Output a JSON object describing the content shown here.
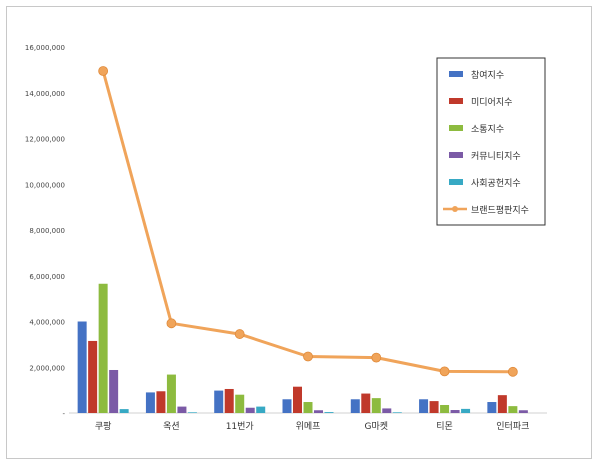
{
  "chart_data": {
    "type": "bar",
    "categories": [
      "쿠팡",
      "옥션",
      "11번가",
      "위메프",
      "G마켓",
      "티몬",
      "인터파크"
    ],
    "y_ticks": [
      "-",
      "2,000,000",
      "4,000,000",
      "6,000,000",
      "8,000,000",
      "10,000,000",
      "12,000,000",
      "14,000,000",
      "16,000,000"
    ],
    "ylim": [
      0,
      16000000
    ],
    "grid": false,
    "legend_position": "top-right",
    "series": [
      {
        "name": "참여지수",
        "kind": "bar",
        "color": "#4472c4",
        "values": [
          4000000,
          900000,
          980000,
          600000,
          600000,
          600000,
          480000
        ]
      },
      {
        "name": "미디어지수",
        "kind": "bar",
        "color": "#c0392b",
        "values": [
          3150000,
          950000,
          1050000,
          1150000,
          850000,
          520000,
          780000
        ]
      },
      {
        "name": "소통지수",
        "kind": "bar",
        "color": "#8dbb3f",
        "values": [
          5650000,
          1680000,
          800000,
          480000,
          650000,
          350000,
          300000
        ]
      },
      {
        "name": "커뮤니티지수",
        "kind": "bar",
        "color": "#7b5aa6",
        "values": [
          1880000,
          280000,
          230000,
          120000,
          200000,
          130000,
          120000
        ]
      },
      {
        "name": "사회공헌지수",
        "kind": "bar",
        "color": "#37a9c4",
        "values": [
          170000,
          30000,
          280000,
          40000,
          30000,
          180000,
          0
        ]
      },
      {
        "name": "브랜드평판지수",
        "kind": "line",
        "color": "#f0a45a",
        "values": [
          14950000,
          3920000,
          3450000,
          2470000,
          2420000,
          1820000,
          1800000
        ]
      }
    ]
  }
}
